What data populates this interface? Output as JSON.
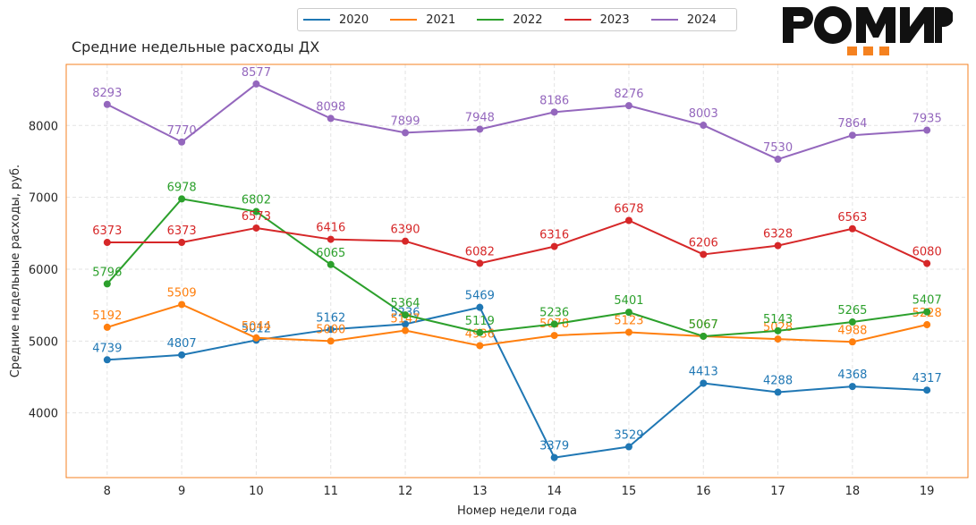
{
  "brand": {
    "name": "РОМИР"
  },
  "chart_data": {
    "type": "line",
    "title": "Средние недельные расходы ДХ",
    "xlabel": "Номер недели года",
    "ylabel": "Средние недельные расходы, руб.",
    "x": [
      8,
      9,
      10,
      11,
      12,
      13,
      14,
      15,
      16,
      17,
      18,
      19
    ],
    "xlim": [
      7.45,
      19.55
    ],
    "ylim": [
      3100,
      8850
    ],
    "yticks": [
      4000,
      5000,
      6000,
      7000,
      8000
    ],
    "grid": true,
    "legend_position": "top-center",
    "series": [
      {
        "name": "2020",
        "color": "#1f77b4",
        "values": [
          4739,
          4807,
          5012,
          5162,
          5236,
          5469,
          3379,
          3529,
          4413,
          4288,
          4368,
          4317
        ]
      },
      {
        "name": "2021",
        "color": "#ff7f0e",
        "values": [
          5192,
          5509,
          5044,
          5000,
          5147,
          4936,
          5078,
          5123,
          5067,
          5028,
          4988,
          5228
        ]
      },
      {
        "name": "2022",
        "color": "#2ca02c",
        "values": [
          5796,
          6978,
          6802,
          6065,
          5364,
          5119,
          5236,
          5401,
          5067,
          5143,
          5265,
          5407
        ]
      },
      {
        "name": "2023",
        "color": "#d62728",
        "values": [
          6373,
          6373,
          6573,
          6416,
          6390,
          6082,
          6316,
          6678,
          6206,
          6328,
          6563,
          6080
        ]
      },
      {
        "name": "2024",
        "color": "#9467bd",
        "values": [
          8293,
          7770,
          8577,
          8098,
          7899,
          7948,
          8186,
          8276,
          8003,
          7530,
          7864,
          7935
        ]
      }
    ]
  }
}
